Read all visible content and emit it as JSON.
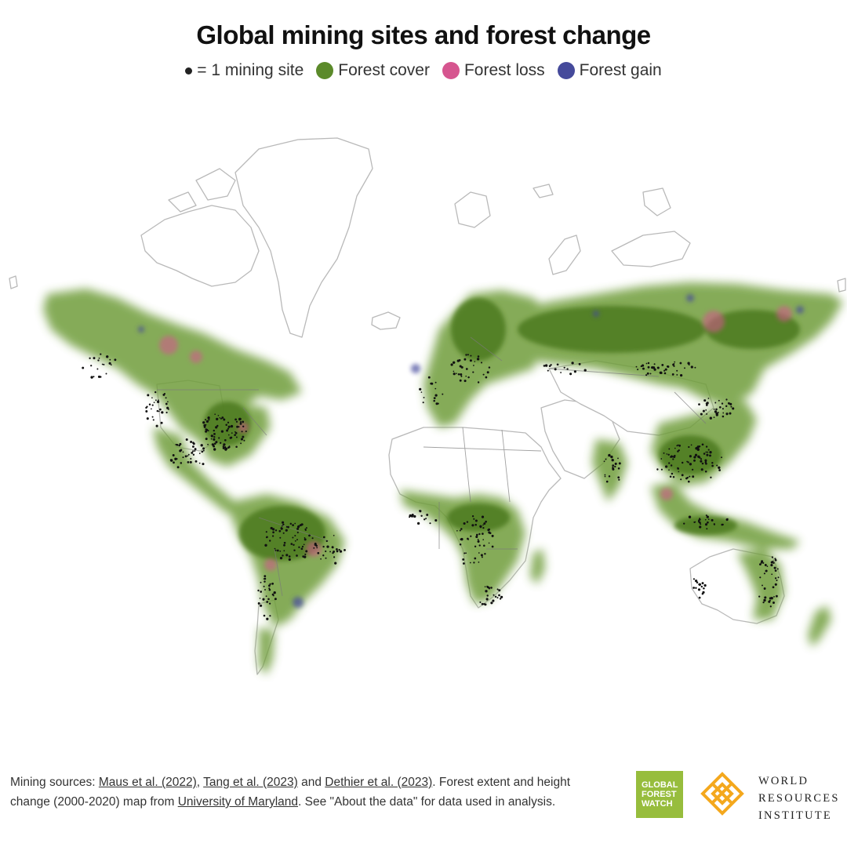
{
  "title": "Global mining sites and forest change",
  "legend": [
    {
      "key": "mining",
      "label": "= 1 mining site",
      "color": "#222222",
      "icon": "small-dot-icon"
    },
    {
      "key": "cover",
      "label": "Forest cover",
      "color": "#5b8a2a",
      "icon": "green-circle-icon"
    },
    {
      "key": "loss",
      "label": "Forest loss",
      "color": "#d6558f",
      "icon": "pink-circle-icon"
    },
    {
      "key": "gain",
      "label": "Forest gain",
      "color": "#454a9b",
      "icon": "blue-circle-icon"
    }
  ],
  "footer": {
    "prefix": "Mining sources: ",
    "links": [
      "Maus et al. (2022)",
      "Tang et al. (2023)",
      "Dethier et al. (2023)",
      "University of Maryland"
    ],
    "sep1": ", ",
    "sep2": " and ",
    "mid": ". Forest extent and height change (2000-2020) map from ",
    "suffix": ". See \"About the data\" for data used in analysis."
  },
  "logos": {
    "gfw": [
      "GLOBAL",
      "FOREST",
      "WATCH"
    ],
    "wri": [
      "WORLD",
      "RESOURCES",
      "INSTITUTE"
    ],
    "gfw_color": "#97bd3d",
    "wri_color": "#f4a81d"
  }
}
